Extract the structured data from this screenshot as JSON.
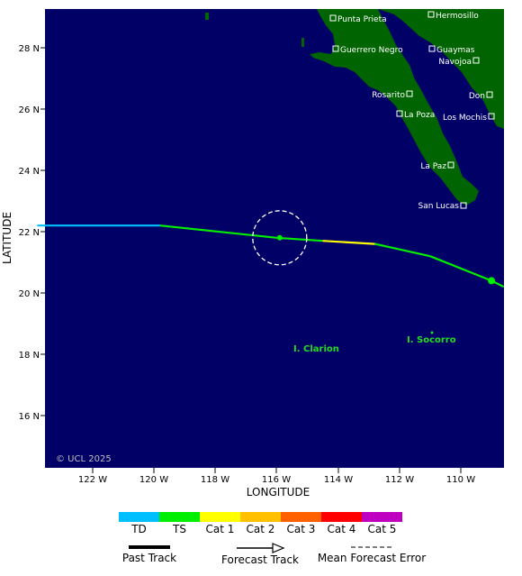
{
  "axes": {
    "xlabel": "LONGITUDE",
    "ylabel": "LATITUDE",
    "x_ticks": [
      "122 W",
      "120 W",
      "118 W",
      "116 W",
      "114 W",
      "112 W",
      "110 W"
    ],
    "y_ticks": [
      "28 N",
      "26 N",
      "24 N",
      "22 N",
      "20 N",
      "18 N",
      "16 N"
    ]
  },
  "map": {
    "copyright": "© UCL 2025",
    "ocean_color": "#000066",
    "land_color": "#006400",
    "cities": [
      {
        "name": "Punta Prieta"
      },
      {
        "name": "Hermosillo"
      },
      {
        "name": "Guerrero Negro"
      },
      {
        "name": "Guaymas"
      },
      {
        "name": "Navojoa"
      },
      {
        "name": "Rosarito"
      },
      {
        "name": "Don"
      },
      {
        "name": "La Poza"
      },
      {
        "name": "Los Mochis"
      },
      {
        "name": "La Paz"
      },
      {
        "name": "San Lucas"
      }
    ],
    "islands": [
      "I. Clarion",
      "I. Socorro"
    ]
  },
  "track": {
    "points": [
      {
        "lon": -123.8,
        "lat": 22.2,
        "category": "TD"
      },
      {
        "lon": -119.8,
        "lat": 22.2,
        "category": "TS"
      },
      {
        "lon": -116.0,
        "lat": 21.8,
        "category": "TS"
      },
      {
        "lon": -114.5,
        "lat": 21.7,
        "category": "Cat 1"
      },
      {
        "lon": -112.8,
        "lat": 21.6,
        "category": "TS"
      },
      {
        "lon": -111.0,
        "lat": 21.2,
        "category": "TS"
      },
      {
        "lon": -109.0,
        "lat": 20.4,
        "category": "TS"
      },
      {
        "lon": -108.6,
        "lat": 20.2,
        "category": "TS"
      }
    ],
    "markers": [
      {
        "lon": -115.9,
        "lat": 21.8
      },
      {
        "lon": -109.0,
        "lat": 20.4
      }
    ],
    "error_circle": {
      "lon": -115.9,
      "lat": 21.8
    }
  },
  "legend": {
    "scale": [
      {
        "label": "TD",
        "color": "#00bfff"
      },
      {
        "label": "TS",
        "color": "#00ee00"
      },
      {
        "label": "Cat 1",
        "color": "#ffff00"
      },
      {
        "label": "Cat 2",
        "color": "#ffc000"
      },
      {
        "label": "Cat 3",
        "color": "#ff6000"
      },
      {
        "label": "Cat 4",
        "color": "#ff0000"
      },
      {
        "label": "Cat 5",
        "color": "#c000c0"
      }
    ],
    "past_track": "Past Track",
    "forecast_track": "Forecast Track",
    "mean_error": "Mean Forecast Error"
  }
}
